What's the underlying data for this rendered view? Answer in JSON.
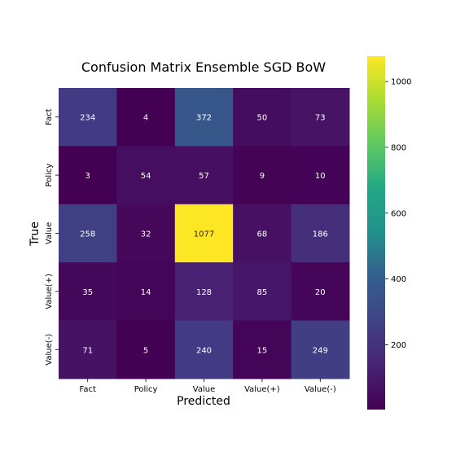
{
  "chart_data": {
    "type": "heatmap",
    "title": "Confusion Matrix Ensemble SGD BoW",
    "xlabel": "Predicted",
    "ylabel": "True",
    "x_categories": [
      "Fact",
      "Policy",
      "Value",
      "Value(+)",
      "Value(-)"
    ],
    "y_categories": [
      "Fact",
      "Policy",
      "Value",
      "Value(+)",
      "Value(-)"
    ],
    "values": [
      [
        234,
        4,
        372,
        50,
        73
      ],
      [
        3,
        54,
        57,
        9,
        10
      ],
      [
        258,
        32,
        1077,
        68,
        186
      ],
      [
        35,
        14,
        128,
        85,
        20
      ],
      [
        71,
        5,
        240,
        15,
        249
      ]
    ],
    "colormap": "viridis",
    "colorbar": {
      "vmin": 3,
      "vmax": 1077,
      "ticks": [
        200,
        400,
        600,
        800,
        1000
      ]
    },
    "grid": false,
    "legend": "colorbar-right"
  }
}
